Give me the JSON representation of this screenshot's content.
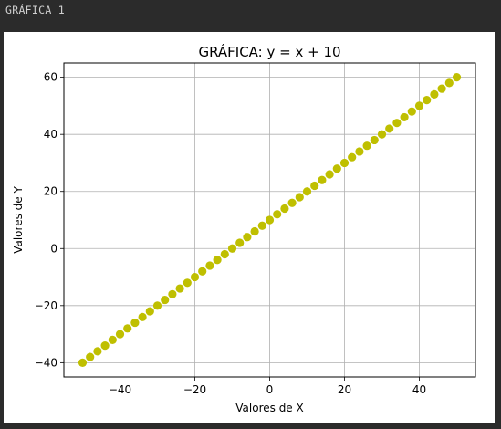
{
  "output_label": "GRÁFICA 1",
  "chart_data": {
    "type": "scatter",
    "title": "GRÁFICA: y = x + 10",
    "xlabel": "Valores de X",
    "ylabel": "Valores de Y",
    "xlim": [
      -55,
      55
    ],
    "ylim": [
      -45,
      65
    ],
    "xticks": [
      -40,
      -20,
      0,
      20,
      40
    ],
    "yticks": [
      -40,
      -20,
      0,
      20,
      40,
      60
    ],
    "grid": true,
    "marker_color": "#bfbf00",
    "x": [
      -50,
      -48,
      -46,
      -44,
      -42,
      -40,
      -38,
      -36,
      -34,
      -32,
      -30,
      -28,
      -26,
      -24,
      -22,
      -20,
      -18,
      -16,
      -14,
      -12,
      -10,
      -8,
      -6,
      -4,
      -2,
      0,
      2,
      4,
      6,
      8,
      10,
      12,
      14,
      16,
      18,
      20,
      22,
      24,
      26,
      28,
      30,
      32,
      34,
      36,
      38,
      40,
      42,
      44,
      46,
      48,
      50
    ],
    "y": [
      -40,
      -38,
      -36,
      -34,
      -32,
      -30,
      -28,
      -26,
      -24,
      -22,
      -20,
      -18,
      -16,
      -14,
      -12,
      -10,
      -8,
      -6,
      -4,
      -2,
      0,
      2,
      4,
      6,
      8,
      10,
      12,
      14,
      16,
      18,
      20,
      22,
      24,
      26,
      28,
      30,
      32,
      34,
      36,
      38,
      40,
      42,
      44,
      46,
      48,
      50,
      52,
      54,
      56,
      58,
      60
    ]
  }
}
